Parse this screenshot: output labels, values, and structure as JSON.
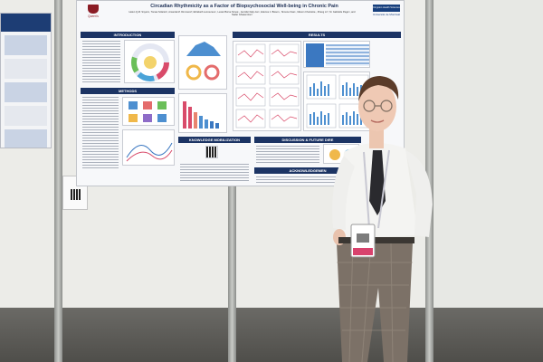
{
  "poster": {
    "title": "Circadian Rhythmicity as a Factor of Biopsychosocial Well-being in Chronic Pain",
    "authors": "Helen Q.M. Snyers¹, Tomas Sclarsic², Amanda M. Dimmerel³, Elizabeth Lemoureux⁴, Lester Borse Simes⁵, Jennifer Daly-Cer⁶, Etienne J. Bisson⁷, Simone Fiset⁸, Manon Choinière⁹, Zhang Li¹⁰, M. Gabrielle Pagé¹¹, and Nader Ghasemlou¹²",
    "logo_left": "Queen's",
    "logo_right_box": "Kingston Health Sciences Centre",
    "logo_right_name": "Université de Montréal",
    "sections": {
      "introduction": "INTRODUCTION",
      "methods": "METHODS",
      "results": "RESULTS",
      "knowledge_mobilization": "KNOWLEDGE MOBILIZATION",
      "discussion": "DISCUSSION & FUTURE DIRE",
      "acknowledgements": "ACKNOWLEDGEMEN"
    }
  },
  "colors": {
    "poster_header": "#1c3464",
    "crest": "#8b1c25",
    "accent_blue": "#3b78c1"
  }
}
